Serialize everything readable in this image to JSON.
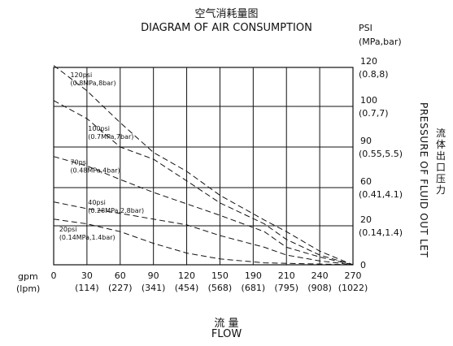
{
  "title_cn": "空气消耗量图",
  "title_en": "DIAGRAM OF AIR CONSUMPTION",
  "right_axis_unit_line1": "PSI",
  "right_axis_unit_line2": "(MPa,bar)",
  "right_axis_title_cn": "流体出口压力",
  "right_axis_title_en": "PRESSURE OF FLUID OUT LET",
  "x_unit_line1": "gpm",
  "x_unit_line2": "(lpm)",
  "x_title_cn": "流 量",
  "x_title_en": "FLOW",
  "colors": {
    "line": "#111111",
    "grid": "#111111",
    "background": "#ffffff"
  },
  "chart_data": {
    "type": "line",
    "title": "DIAGRAM OF AIR CONSUMPTION",
    "xlabel": "FLOW",
    "ylabel": "PRESSURE OF FLUID OUT LET",
    "x_ticks": [
      {
        "gpm": "0",
        "lpm": ""
      },
      {
        "gpm": "30",
        "lpm": "(114)"
      },
      {
        "gpm": "60",
        "lpm": "(227)"
      },
      {
        "gpm": "90",
        "lpm": "(341)"
      },
      {
        "gpm": "120",
        "lpm": "(454)"
      },
      {
        "gpm": "150",
        "lpm": "(568)"
      },
      {
        "gpm": "190",
        "lpm": "(681)"
      },
      {
        "gpm": "210",
        "lpm": "(795)"
      },
      {
        "gpm": "240",
        "lpm": "(908)"
      },
      {
        "gpm": "270",
        "lpm": "(1022)"
      }
    ],
    "y_ticks": [
      {
        "psi": "0",
        "mpa": ""
      },
      {
        "psi": "20",
        "mpa": "(0.14,1.4)"
      },
      {
        "psi": "60",
        "mpa": "(0.41,4.1)"
      },
      {
        "psi": "90",
        "mpa": "(0.55,5.5)"
      },
      {
        "psi": "100",
        "mpa": "(0.7,7)"
      },
      {
        "psi": "120",
        "mpa": "(0.8,8)"
      }
    ],
    "grid": true,
    "series": [
      {
        "label_line1": "120psi",
        "label_line2": "(0.8MPa,8bar)",
        "label_x": 15,
        "label_y": 115,
        "points": [
          [
            0,
            121
          ],
          [
            30,
            108
          ],
          [
            60,
            96
          ],
          [
            90,
            86
          ],
          [
            120,
            72
          ],
          [
            150,
            52
          ],
          [
            190,
            26
          ],
          [
            210,
            17
          ],
          [
            240,
            7
          ],
          [
            270,
            0
          ]
        ]
      },
      {
        "label_line1": "100psi",
        "label_line2": "(0.7MPa,7bar)",
        "label_x": 31,
        "label_y": 94,
        "points": [
          [
            0,
            103
          ],
          [
            30,
            97
          ],
          [
            60,
            90
          ],
          [
            90,
            81
          ],
          [
            120,
            65
          ],
          [
            150,
            44
          ],
          [
            190,
            22
          ],
          [
            210,
            13
          ],
          [
            240,
            5
          ],
          [
            270,
            0
          ]
        ]
      },
      {
        "label_line1": "70psi",
        "label_line2": "(0.48MPa,4bar)",
        "label_x": 15,
        "label_y": 77,
        "points": [
          [
            0,
            83
          ],
          [
            30,
            76
          ],
          [
            60,
            66
          ],
          [
            90,
            55
          ],
          [
            120,
            43
          ],
          [
            150,
            31
          ],
          [
            190,
            17
          ],
          [
            210,
            9
          ],
          [
            240,
            4
          ],
          [
            270,
            0
          ]
        ]
      },
      {
        "label_line1": "40psi",
        "label_line2": "(0.28MPa,2.8bar)",
        "label_x": 31,
        "label_y": 42,
        "points": [
          [
            0,
            45
          ],
          [
            30,
            38
          ],
          [
            60,
            33
          ],
          [
            90,
            27
          ],
          [
            120,
            21
          ],
          [
            150,
            15
          ],
          [
            190,
            9
          ],
          [
            210,
            5
          ],
          [
            240,
            2
          ],
          [
            270,
            0
          ]
        ]
      },
      {
        "label_line1": "20psi",
        "label_line2": "(0.14MPa,1.4bar)",
        "label_x": 5,
        "label_y": 17,
        "points": [
          [
            0,
            27
          ],
          [
            30,
            22
          ],
          [
            60,
            17
          ],
          [
            90,
            11
          ],
          [
            120,
            6
          ],
          [
            150,
            3
          ],
          [
            190,
            1
          ],
          [
            270,
            0
          ]
        ]
      }
    ]
  }
}
